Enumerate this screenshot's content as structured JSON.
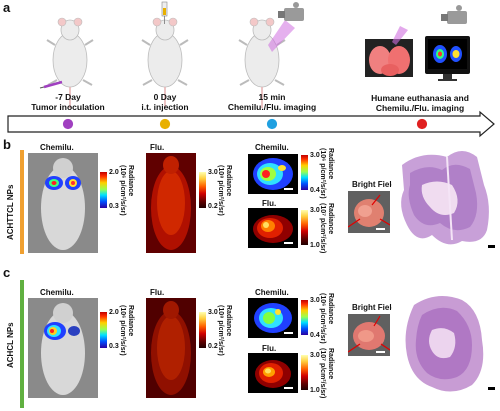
{
  "panels": {
    "a": "a",
    "b": "b",
    "c": "c"
  },
  "timeline": [
    {
      "day": "-7 Day",
      "desc": "Tumor inoculation",
      "color": "#a040c0"
    },
    {
      "day": "0 Day",
      "desc": "i.t. injection",
      "color": "#e8b000"
    },
    {
      "day": "15 min",
      "desc": "Chemilu./Flu. imaging",
      "color": "#20a0e0"
    },
    {
      "day": "",
      "desc": "Humane euthanasia and Chemilu./Flu. imaging",
      "color": "#e02020"
    }
  ],
  "rows": {
    "b": {
      "label": "ACHTTCL NPs",
      "color": "#f0a030"
    },
    "c": {
      "label": "ACHCL NPs",
      "color": "#60b040"
    }
  },
  "labels": {
    "chemilu": "Chemilu.",
    "flu": "Flu.",
    "bright": "Bright Field",
    "radiance": "Radiance",
    "unit6": "(10⁶ p/cm²/s/sr)",
    "unit8": "(10⁸ p/cm²/s/sr)",
    "unit7": "(10⁷ p/cm²/s/sr)"
  },
  "scales": {
    "b_chem_body": {
      "max": "2.0",
      "min": "0.3"
    },
    "b_flu_body": {
      "max": "3.0",
      "min": "0.2"
    },
    "b_chem_organ": {
      "max": "3.0",
      "min": "0.4"
    },
    "b_flu_organ": {
      "max": "3.0",
      "min": "1.0"
    },
    "c_chem_body": {
      "max": "2.0",
      "min": "0.3"
    },
    "c_flu_body": {
      "max": "3.0",
      "min": "0.2"
    },
    "c_chem_organ": {
      "max": "3.0",
      "min": "0.4"
    },
    "c_flu_organ": {
      "max": "3.0",
      "min": "1.0"
    }
  }
}
